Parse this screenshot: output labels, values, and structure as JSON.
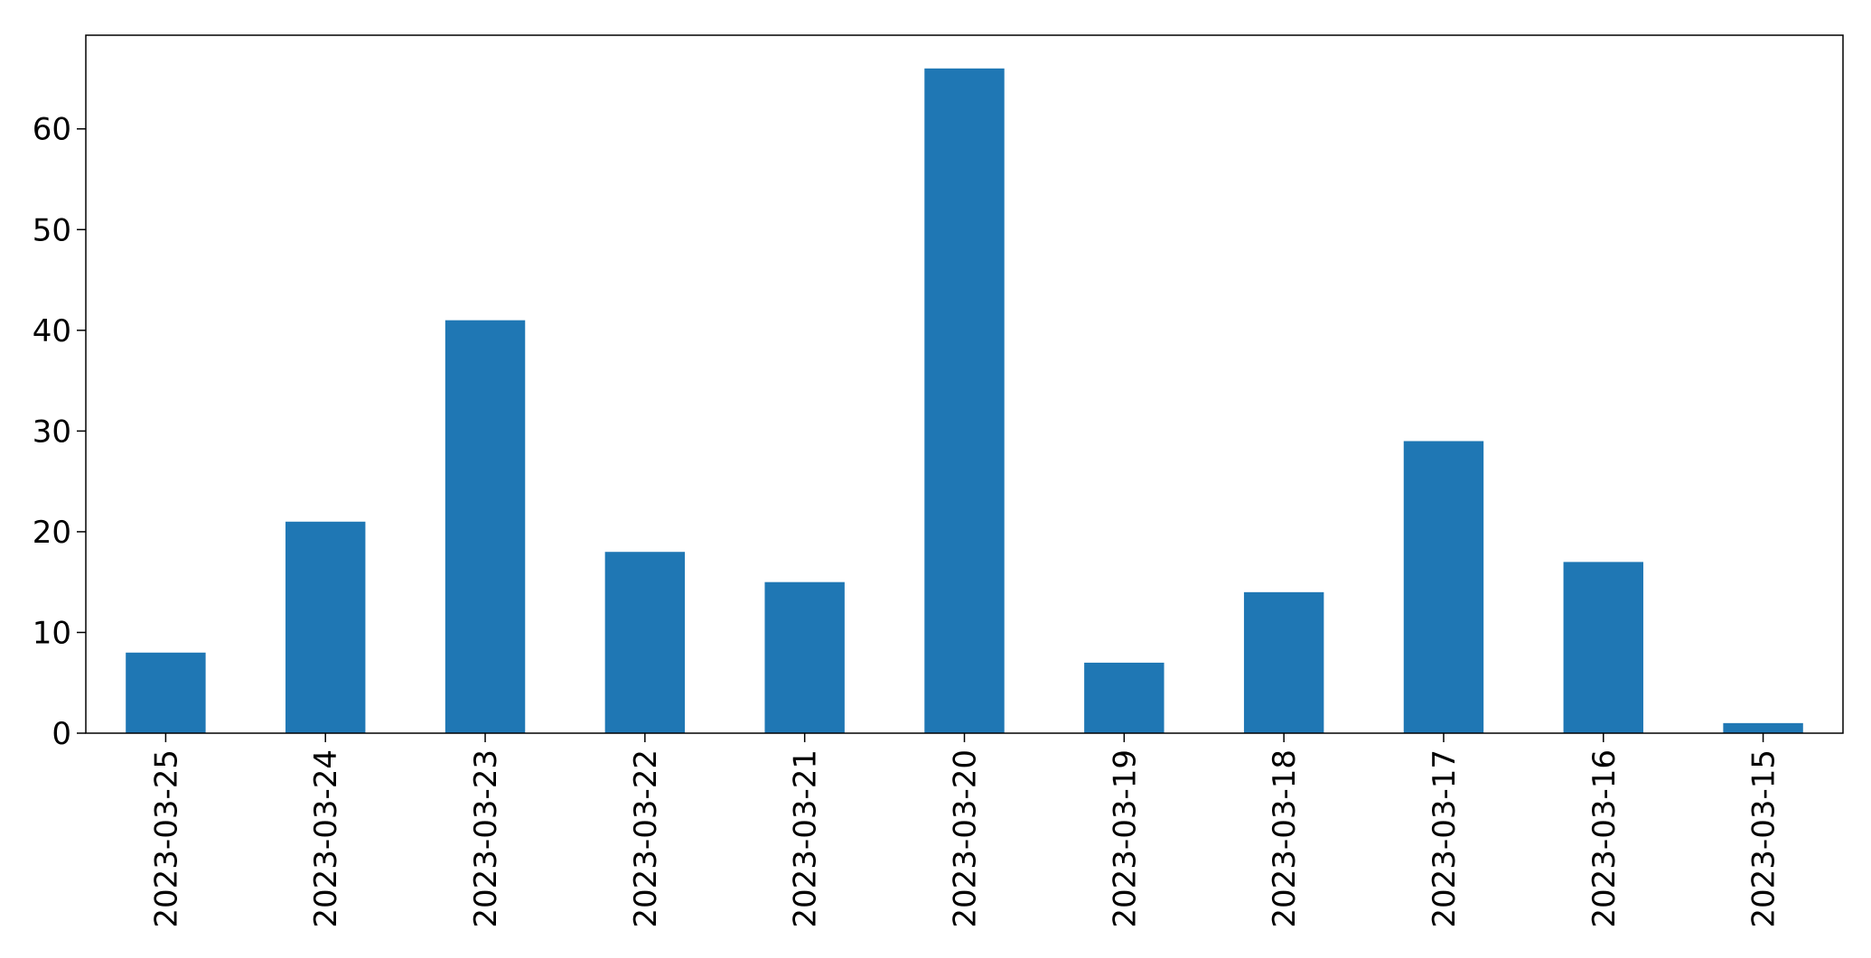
{
  "chart_data": {
    "type": "bar",
    "title": "",
    "xlabel": "",
    "ylabel": "",
    "categories": [
      "2023-03-25",
      "2023-03-24",
      "2023-03-23",
      "2023-03-22",
      "2023-03-21",
      "2023-03-20",
      "2023-03-19",
      "2023-03-18",
      "2023-03-17",
      "2023-03-16",
      "2023-03-15"
    ],
    "values": [
      8,
      21,
      41,
      18,
      15,
      66,
      7,
      14,
      29,
      17,
      1
    ],
    "ylim": [
      0,
      69.3
    ],
    "yticks": [
      0,
      10,
      20,
      30,
      40,
      50,
      60
    ],
    "grid": false,
    "legend": "none",
    "bar_color": "#1f77b4",
    "axis_color": "#000000"
  }
}
